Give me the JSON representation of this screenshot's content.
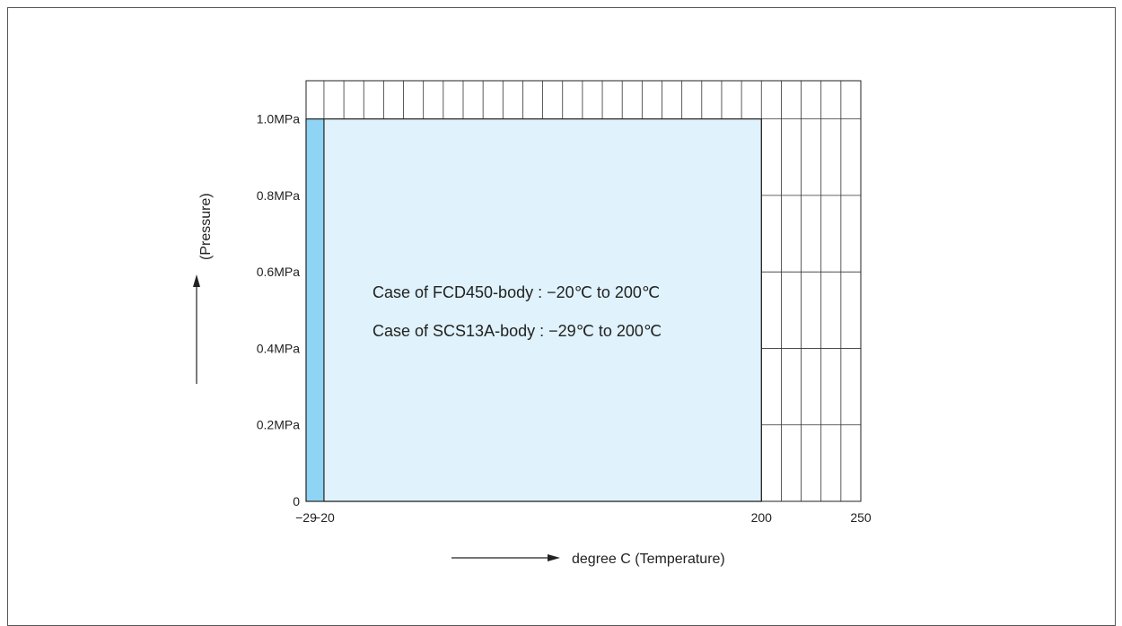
{
  "chart_data": {
    "type": "area",
    "title": "",
    "xlabel": "degree C (Temperature)",
    "ylabel": "(Pressure)",
    "xlim": [
      -29,
      250
    ],
    "ylim": [
      0,
      1.1
    ],
    "grid": true,
    "x_ticks": [
      {
        "value": -29,
        "label": "−29"
      },
      {
        "value": -20,
        "label": "−20"
      },
      {
        "value": 200,
        "label": "200"
      },
      {
        "value": 250,
        "label": "250"
      }
    ],
    "y_ticks": [
      {
        "value": 0,
        "label": "0"
      },
      {
        "value": 0.2,
        "label": "0.2MPa"
      },
      {
        "value": 0.4,
        "label": "0.4MPa"
      },
      {
        "value": 0.6,
        "label": "0.6MPa"
      },
      {
        "value": 0.8,
        "label": "0.8MPa"
      },
      {
        "value": 1.0,
        "label": "1.0MPa"
      }
    ],
    "regions": [
      {
        "name": "SCS13A-body",
        "x_range": [
          -29,
          200
        ],
        "y_range": [
          0,
          1.0
        ],
        "color": "#8fd3f5"
      },
      {
        "name": "FCD450-body",
        "x_range": [
          -20,
          200
        ],
        "y_range": [
          0,
          1.0
        ],
        "color": "#e0f2fb"
      }
    ],
    "annotations": [
      "Case of FCD450-body : −20℃ to 200℃",
      "Case of SCS13A-body : −29℃ to 200℃"
    ]
  }
}
